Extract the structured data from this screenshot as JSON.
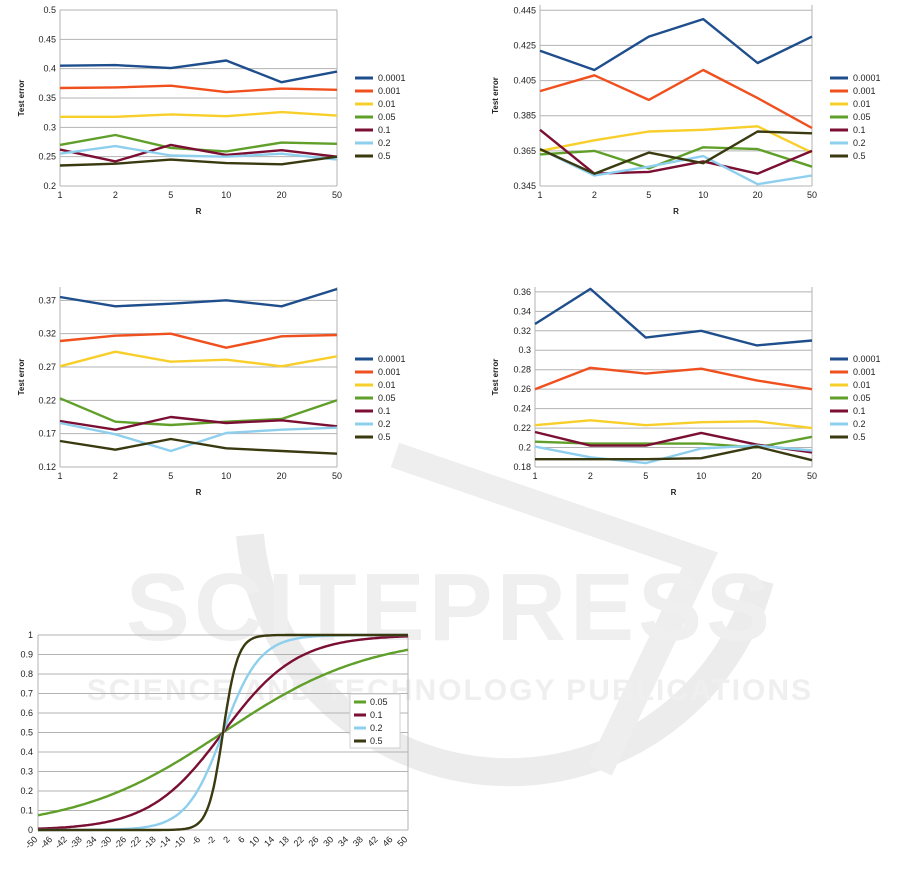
{
  "series_colors": {
    "0.0001": "#1f4e8c",
    "0.001": "#f0501e",
    "0.01": "#f8cf2a",
    "0.05": "#5f9f2a",
    "0.1": "#7b0f33",
    "0.2": "#8ecfee",
    "0.5": "#3a3a10"
  },
  "watermark": {
    "main": "SCITEPRESS",
    "sub": "SCIENCE AND TECHNOLOGY PUBLICATIONS"
  },
  "chart_data": [
    {
      "type": "line",
      "xlabel": "R",
      "ylabel": "Test error",
      "categories": [
        "1",
        "2",
        "5",
        "10",
        "20",
        "50"
      ],
      "yticks": [
        "0.2",
        "0.25",
        "0.3",
        "0.35",
        "0.4",
        "0.45",
        "0.5"
      ],
      "ylim": [
        0.2,
        0.5
      ],
      "grid": true,
      "legend": "right",
      "series": [
        {
          "name": "0.0001",
          "values": [
            0.405,
            0.406,
            0.401,
            0.414,
            0.377,
            0.395
          ]
        },
        {
          "name": "0.001",
          "values": [
            0.367,
            0.368,
            0.371,
            0.36,
            0.366,
            0.364
          ]
        },
        {
          "name": "0.01",
          "values": [
            0.318,
            0.318,
            0.322,
            0.319,
            0.326,
            0.32
          ]
        },
        {
          "name": "0.05",
          "values": [
            0.27,
            0.287,
            0.265,
            0.259,
            0.274,
            0.272
          ]
        },
        {
          "name": "0.1",
          "values": [
            0.262,
            0.242,
            0.27,
            0.253,
            0.261,
            0.25
          ]
        },
        {
          "name": "0.2",
          "values": [
            0.255,
            0.268,
            0.252,
            0.25,
            0.255,
            0.245
          ]
        },
        {
          "name": "0.5",
          "values": [
            0.235,
            0.238,
            0.245,
            0.239,
            0.237,
            0.25
          ]
        }
      ]
    },
    {
      "type": "line",
      "xlabel": "R",
      "ylabel": "Test error",
      "categories": [
        "1",
        "2",
        "5",
        "10",
        "20",
        "50"
      ],
      "yticks": [
        "0.345",
        "0.365",
        "0.385",
        "0.405",
        "0.425",
        "0.445"
      ],
      "ylim": [
        0.345,
        0.448
      ],
      "grid": true,
      "legend": "right",
      "series": [
        {
          "name": "0.0001",
          "values": [
            0.422,
            0.411,
            0.43,
            0.44,
            0.415,
            0.43
          ]
        },
        {
          "name": "0.001",
          "values": [
            0.399,
            0.408,
            0.394,
            0.411,
            0.395,
            0.378
          ]
        },
        {
          "name": "0.01",
          "values": [
            0.365,
            0.371,
            0.376,
            0.377,
            0.379,
            0.364
          ]
        },
        {
          "name": "0.05",
          "values": [
            0.363,
            0.365,
            0.355,
            0.367,
            0.366,
            0.356
          ]
        },
        {
          "name": "0.1",
          "values": [
            0.377,
            0.352,
            0.353,
            0.359,
            0.352,
            0.365
          ]
        },
        {
          "name": "0.2",
          "values": [
            0.366,
            0.351,
            0.356,
            0.362,
            0.346,
            0.351
          ]
        },
        {
          "name": "0.5",
          "values": [
            0.366,
            0.352,
            0.364,
            0.358,
            0.376,
            0.375
          ]
        }
      ]
    },
    {
      "type": "line",
      "xlabel": "R",
      "ylabel": "Test error",
      "categories": [
        "1",
        "2",
        "5",
        "10",
        "20",
        "50"
      ],
      "yticks": [
        "0.12",
        "0.17",
        "0.22",
        "0.27",
        "0.32",
        "0.37"
      ],
      "ylim": [
        0.12,
        0.39
      ],
      "grid": true,
      "legend": "right",
      "series": [
        {
          "name": "0.0001",
          "values": [
            0.375,
            0.361,
            0.365,
            0.37,
            0.361,
            0.387
          ]
        },
        {
          "name": "0.001",
          "values": [
            0.309,
            0.317,
            0.32,
            0.299,
            0.316,
            0.318
          ]
        },
        {
          "name": "0.01",
          "values": [
            0.271,
            0.293,
            0.278,
            0.281,
            0.271,
            0.286
          ]
        },
        {
          "name": "0.05",
          "values": [
            0.223,
            0.188,
            0.183,
            0.188,
            0.192,
            0.22
          ]
        },
        {
          "name": "0.1",
          "values": [
            0.189,
            0.176,
            0.195,
            0.186,
            0.19,
            0.181
          ]
        },
        {
          "name": "0.2",
          "values": [
            0.186,
            0.169,
            0.144,
            0.171,
            0.176,
            0.179
          ]
        },
        {
          "name": "0.5",
          "values": [
            0.159,
            0.146,
            0.162,
            0.148,
            0.144,
            0.14
          ]
        }
      ]
    },
    {
      "type": "line",
      "xlabel": "R",
      "ylabel": "Test error",
      "categories": [
        "1",
        "2",
        "5",
        "10",
        "20",
        "50"
      ],
      "yticks": [
        "0.18",
        "0.2",
        "0.22",
        "0.24",
        "0.26",
        "0.28",
        "0.3",
        "0.32",
        "0.34",
        "0.36"
      ],
      "ylim": [
        0.18,
        0.365
      ],
      "grid": true,
      "legend": "right",
      "series": [
        {
          "name": "0.0001",
          "values": [
            0.327,
            0.363,
            0.313,
            0.32,
            0.305,
            0.31
          ]
        },
        {
          "name": "0.001",
          "values": [
            0.26,
            0.282,
            0.276,
            0.281,
            0.269,
            0.26
          ]
        },
        {
          "name": "0.01",
          "values": [
            0.223,
            0.228,
            0.223,
            0.226,
            0.227,
            0.22
          ]
        },
        {
          "name": "0.05",
          "values": [
            0.206,
            0.204,
            0.204,
            0.204,
            0.2,
            0.211
          ]
        },
        {
          "name": "0.1",
          "values": [
            0.216,
            0.202,
            0.202,
            0.215,
            0.203,
            0.195
          ]
        },
        {
          "name": "0.2",
          "values": [
            0.201,
            0.19,
            0.184,
            0.199,
            0.202,
            0.197
          ]
        },
        {
          "name": "0.5",
          "values": [
            0.188,
            0.188,
            0.188,
            0.189,
            0.201,
            0.187
          ]
        }
      ]
    },
    {
      "type": "line",
      "xlabel": "",
      "ylabel": "",
      "function": "logistic",
      "x": [
        -50,
        50
      ],
      "xticks": [
        "-50",
        "-46",
        "-42",
        "-38",
        "-34",
        "-30",
        "-26",
        "-22",
        "-18",
        "-14",
        "-10",
        "-6",
        "-2",
        "2",
        "6",
        "10",
        "14",
        "18",
        "22",
        "26",
        "30",
        "34",
        "38",
        "42",
        "46",
        "50"
      ],
      "yticks": [
        "0",
        "0.1",
        "0.2",
        "0.3",
        "0.4",
        "0.5",
        "0.6",
        "0.7",
        "0.8",
        "0.9",
        "1"
      ],
      "ylim": [
        0,
        1
      ],
      "grid": true,
      "legend": "inside-right",
      "series": [
        {
          "name": "0.05",
          "slope": 0.05
        },
        {
          "name": "0.1",
          "slope": 0.1
        },
        {
          "name": "0.2",
          "slope": 0.2
        },
        {
          "name": "0.5",
          "slope": 0.5
        }
      ]
    }
  ]
}
